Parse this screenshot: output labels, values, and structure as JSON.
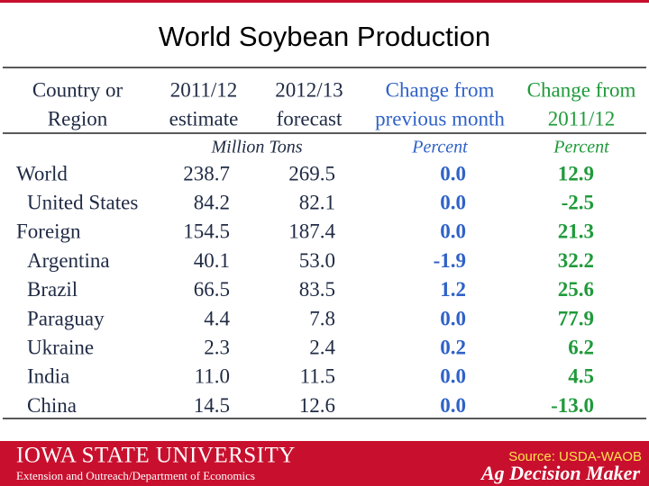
{
  "header": {
    "title": "World Soybean Production"
  },
  "table": {
    "columns": [
      [
        "Country or",
        "Region"
      ],
      [
        "2011/12",
        "estimate"
      ],
      [
        "2012/13",
        "forecast"
      ],
      [
        "Change from",
        "previous month"
      ],
      [
        "Change from",
        "2011/12"
      ]
    ],
    "units": [
      "Million Tons",
      "Percent",
      "Percent"
    ],
    "rows": [
      [
        "World",
        "238.7",
        "269.5",
        "0.0",
        "12.9"
      ],
      [
        "United States",
        "84.2",
        "82.1",
        "0.0",
        "-2.5"
      ],
      [
        "Foreign",
        "154.5",
        "187.4",
        "0.0",
        "21.3"
      ],
      [
        "Argentina",
        "40.1",
        "53.0",
        "-1.9",
        "32.2"
      ],
      [
        "Brazil",
        "66.5",
        "83.5",
        "1.2",
        "25.6"
      ],
      [
        "Paraguay",
        "4.4",
        "7.8",
        "0.0",
        "77.9"
      ],
      [
        "Ukraine",
        "2.3",
        "2.4",
        "0.2",
        "6.2"
      ],
      [
        "India",
        "11.0",
        "11.5",
        "0.0",
        "4.5"
      ],
      [
        "China",
        "14.5",
        "12.6",
        "0.0",
        "-13.0"
      ]
    ]
  },
  "footer": {
    "university": "IOWA STATE UNIVERSITY",
    "department": "Extension and Outreach/Department of Economics",
    "source": "Source: USDA-WAOB",
    "brand": "Ag Decision Maker"
  }
}
